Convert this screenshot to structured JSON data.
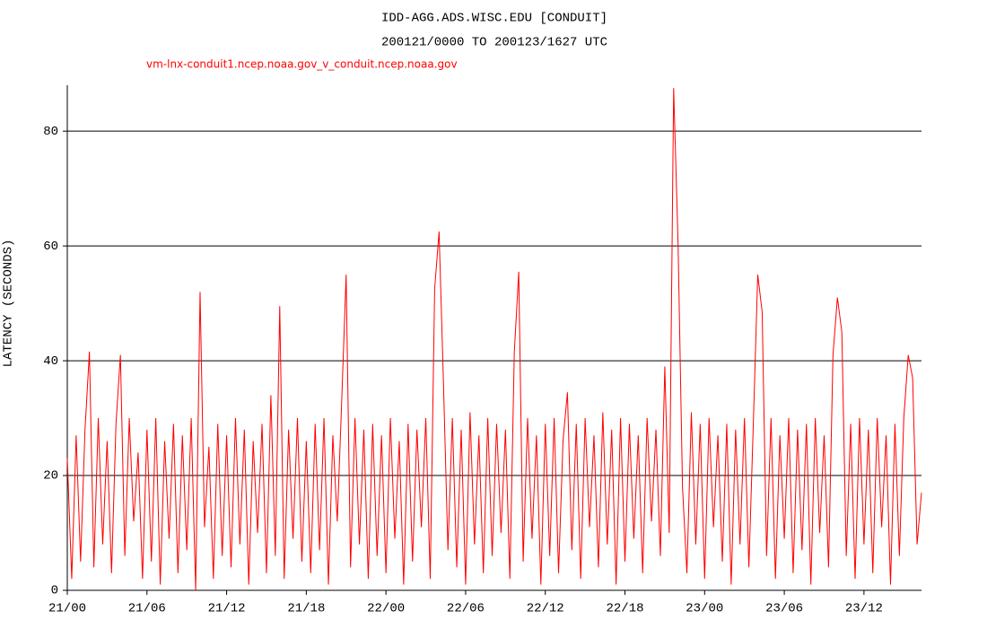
{
  "chart_data": {
    "type": "line",
    "title": "IDD-AGG.ADS.WISC.EDU [CONDUIT]",
    "subtitle": "200121/0000 TO 200123/1627 UTC",
    "y_label": "LATENCY (SECONDS)",
    "ylim": [
      0,
      88
    ],
    "yticks": [
      0,
      20,
      40,
      60,
      80
    ],
    "grid": true,
    "categories": [
      "21/00",
      null,
      null,
      null,
      null,
      null,
      null,
      null,
      null,
      null,
      null,
      null,
      null,
      null,
      null,
      null,
      null,
      null,
      "21/06",
      null,
      null,
      null,
      null,
      null,
      null,
      null,
      null,
      null,
      null,
      null,
      null,
      null,
      null,
      null,
      null,
      null,
      "21/12",
      null,
      null,
      null,
      null,
      null,
      null,
      null,
      null,
      null,
      null,
      null,
      null,
      null,
      null,
      null,
      null,
      null,
      "21/18",
      null,
      null,
      null,
      null,
      null,
      null,
      null,
      null,
      null,
      null,
      null,
      null,
      null,
      null,
      null,
      null,
      null,
      "22/00",
      null,
      null,
      null,
      null,
      null,
      null,
      null,
      null,
      null,
      null,
      null,
      null,
      null,
      null,
      null,
      null,
      null,
      "22/06",
      null,
      null,
      null,
      null,
      null,
      null,
      null,
      null,
      null,
      null,
      null,
      null,
      null,
      null,
      null,
      null,
      null,
      "22/12",
      null,
      null,
      null,
      null,
      null,
      null,
      null,
      null,
      null,
      null,
      null,
      null,
      null,
      null,
      null,
      null,
      null,
      "22/18",
      null,
      null,
      null,
      null,
      null,
      null,
      null,
      null,
      null,
      null,
      null,
      null,
      null,
      null,
      null,
      null,
      null,
      "23/00",
      null,
      null,
      null,
      null,
      null,
      null,
      null,
      null,
      null,
      null,
      null,
      null,
      null,
      null,
      null,
      null,
      null,
      "23/06",
      null,
      null,
      null,
      null,
      null,
      null,
      null,
      null,
      null,
      null,
      null,
      null,
      null,
      null,
      null,
      null,
      null,
      "23/12",
      null,
      null,
      null,
      null,
      null,
      null,
      null,
      null,
      null,
      null,
      null,
      null,
      null
    ],
    "series": [
      {
        "name": "vm-lnx-conduit1.ncep.noaa.gov_v_conduit.ncep.noaa.gov",
        "color": "#ff0000",
        "values": [
          23,
          2,
          27,
          5,
          28,
          41.6,
          4,
          30,
          8,
          26,
          3,
          29,
          41,
          6,
          30,
          12,
          24,
          2,
          28,
          5,
          30,
          1,
          26,
          9,
          29,
          3,
          27,
          7,
          30,
          0,
          52,
          11,
          25,
          2,
          29,
          6,
          27,
          4,
          30,
          8,
          28,
          1,
          26,
          10,
          29,
          3,
          34,
          6,
          49.5,
          2,
          28,
          9,
          30,
          5,
          26,
          3,
          29,
          7,
          30,
          1,
          27,
          12,
          33,
          55,
          4,
          30,
          8,
          28,
          2,
          29,
          6,
          27,
          3,
          30,
          9,
          26,
          1,
          29,
          5,
          28,
          11,
          30,
          2,
          52.5,
          62.5,
          36,
          7,
          30,
          4,
          28,
          1,
          31,
          8,
          27,
          3,
          30,
          6,
          29,
          10,
          28,
          2,
          41.5,
          55.5,
          5,
          30,
          9,
          27,
          1,
          29,
          6,
          30,
          3,
          26,
          34.5,
          7,
          29,
          2,
          30,
          11,
          27,
          4,
          31,
          8,
          28,
          1,
          30,
          5,
          29,
          9,
          27,
          3,
          30,
          12,
          28,
          6,
          39,
          10,
          87.5,
          60.5,
          18,
          3,
          31,
          8,
          29,
          2,
          30,
          11,
          27,
          5,
          29,
          1,
          28,
          8,
          30,
          4,
          29,
          55,
          48.5,
          6,
          30,
          2,
          27,
          9,
          30,
          3,
          28,
          7,
          29,
          1,
          30,
          10,
          27,
          4,
          41,
          51,
          45,
          6,
          29,
          2,
          30,
          8,
          28,
          3,
          30,
          11,
          27,
          1,
          29,
          6,
          30,
          41,
          37,
          8,
          17
        ]
      }
    ]
  }
}
